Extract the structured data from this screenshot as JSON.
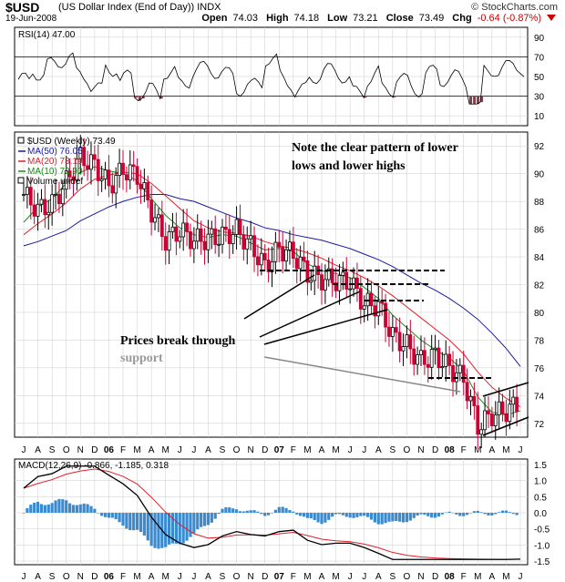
{
  "header": {
    "symbol": "$USD",
    "description": "(US Dollar Index (End of Day))",
    "exchange": "INDX",
    "date": "19-Jun-2008",
    "brand": "© StockCharts.com",
    "open_label": "Open",
    "open": "74.03",
    "high_label": "High",
    "high": "74.18",
    "low_label": "Low",
    "low": "73.21",
    "close_label": "Close",
    "close": "73.49",
    "chg_label": "Chg",
    "chg": "-0.64 (-0.87%)"
  },
  "colors": {
    "up": "#000000",
    "down": "#cc0033",
    "ma50": "#1a1aa0",
    "ma20": "#e0202a",
    "ma10": "#1a8a1a",
    "volume": "#3a8ad0",
    "grid": "#cccccc"
  },
  "rsi": {
    "label": "RSI(14) 47.00",
    "ticks": [
      90,
      70,
      50,
      30,
      10
    ]
  },
  "price": {
    "legend": [
      "$USD (Weekly) 73.49",
      "MA(50) 76.05",
      "MA(20) 73.19",
      "MA(10) 72.90",
      "Volume undef"
    ],
    "ticks": [
      92,
      90,
      88,
      86,
      84,
      82,
      80,
      78,
      76,
      74,
      72
    ],
    "annotation_top": "Note the clear pattern of lower lows and lower highs",
    "annotation_break": "Prices break through",
    "annotation_support": "support"
  },
  "macd": {
    "label": "MACD(12,26,9) -0.866, -1.185, 0.318",
    "ticks": [
      "1.5",
      "1.0",
      "0.5",
      "0.0",
      "-0.5",
      "-1.0",
      "-1.5"
    ]
  },
  "time_axis": [
    "J",
    "A",
    "S",
    "O",
    "N",
    "D",
    "06",
    "F",
    "M",
    "A",
    "M",
    "J",
    "J",
    "A",
    "S",
    "O",
    "N",
    "D",
    "07",
    "F",
    "M",
    "A",
    "M",
    "J",
    "J",
    "A",
    "S",
    "O",
    "N",
    "D",
    "08",
    "F",
    "M",
    "A",
    "M",
    "J"
  ],
  "chart_data": {
    "type": "line",
    "title": "$USD (US Dollar Index (End of Day))",
    "ylim": [
      71,
      93
    ],
    "x": [
      "2005-07",
      "2005-08",
      "2005-09",
      "2005-10",
      "2005-11",
      "2005-12",
      "2006-01",
      "2006-02",
      "2006-03",
      "2006-04",
      "2006-05",
      "2006-06",
      "2006-07",
      "2006-08",
      "2006-09",
      "2006-10",
      "2006-11",
      "2006-12",
      "2007-01",
      "2007-02",
      "2007-03",
      "2007-04",
      "2007-05",
      "2007-06",
      "2007-07",
      "2007-08",
      "2007-09",
      "2007-10",
      "2007-11",
      "2007-12",
      "2008-01",
      "2008-02",
      "2008-03",
      "2008-04",
      "2008-05",
      "2008-06"
    ],
    "series": [
      {
        "name": "$USD (Weekly)",
        "values": [
          88.5,
          87.4,
          87.8,
          89.4,
          91.2,
          90.6,
          89.1,
          90.3,
          89.9,
          87.3,
          85.2,
          85.9,
          85.2,
          85.3,
          85.5,
          85.9,
          84.8,
          83.3,
          84.6,
          84.2,
          82.8,
          82.4,
          82.3,
          82.2,
          80.6,
          80.5,
          78.3,
          77.6,
          76.5,
          76.9,
          76.0,
          75.2,
          71.8,
          72.6,
          72.9,
          73.5
        ]
      },
      {
        "name": "MA(50)",
        "values": [
          84.8,
          85.1,
          85.5,
          85.9,
          86.6,
          87.1,
          87.6,
          88.0,
          88.3,
          88.5,
          88.5,
          88.2,
          88.0,
          87.6,
          87.2,
          86.8,
          86.5,
          86.1,
          85.9,
          85.6,
          85.4,
          85.2,
          84.9,
          84.6,
          84.2,
          83.8,
          83.3,
          82.7,
          82.1,
          81.6,
          81.0,
          80.3,
          79.5,
          78.5,
          77.4,
          76.1
        ]
      },
      {
        "name": "MA(20)",
        "values": [
          85.6,
          86.4,
          87.1,
          87.9,
          88.9,
          89.6,
          89.9,
          90.1,
          90.0,
          89.3,
          88.4,
          87.5,
          86.6,
          86.1,
          85.8,
          85.7,
          85.5,
          85.1,
          84.8,
          84.6,
          84.3,
          83.9,
          83.4,
          83.0,
          82.5,
          81.9,
          81.2,
          80.4,
          79.6,
          78.8,
          78.0,
          77.0,
          75.7,
          74.6,
          73.8,
          73.2
        ]
      },
      {
        "name": "MA(10)",
        "values": [
          86.5,
          87.6,
          88.2,
          89.3,
          90.1,
          90.5,
          90.2,
          90.0,
          89.5,
          88.2,
          87.0,
          86.1,
          85.6,
          85.4,
          85.6,
          85.5,
          85.0,
          84.5,
          84.6,
          84.4,
          83.5,
          83.0,
          82.8,
          82.5,
          81.8,
          81.0,
          79.8,
          78.9,
          78.0,
          77.3,
          76.7,
          75.8,
          73.9,
          72.8,
          72.6,
          72.9
        ]
      }
    ]
  }
}
